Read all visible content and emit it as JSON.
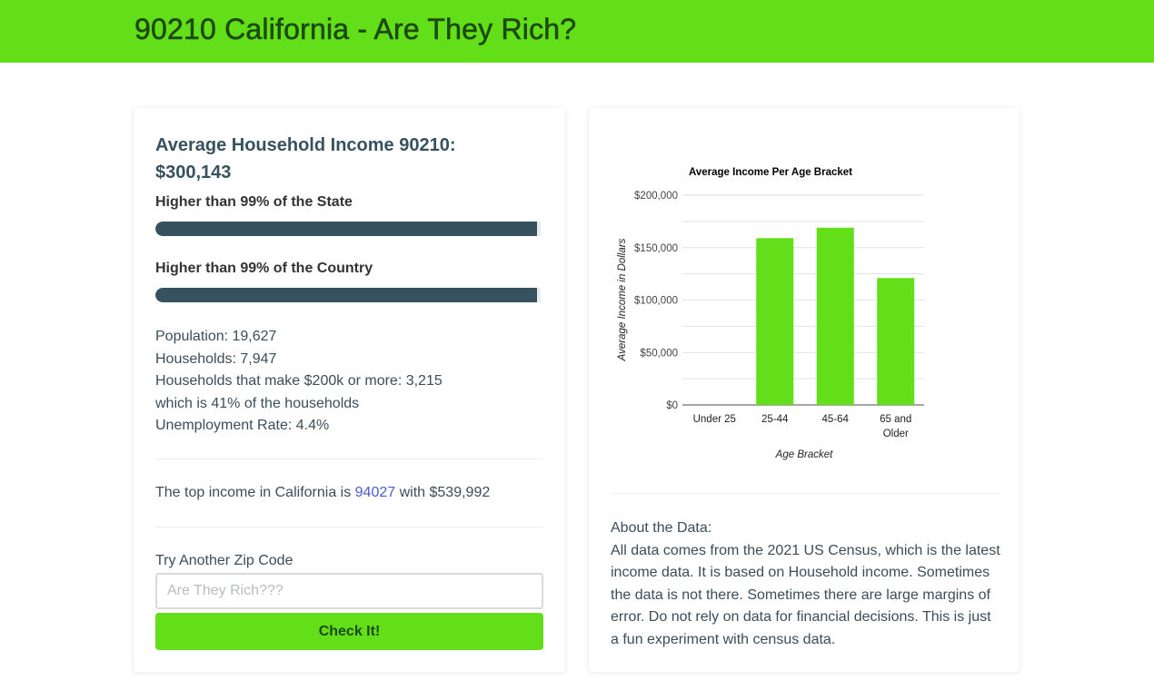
{
  "header": {
    "title": "90210 California - Are They Rich?",
    "background": "#62df19"
  },
  "summary": {
    "income_title": "Average Household Income 90210:",
    "income_value": "$300,143",
    "state_label": "Higher than 99% of the State",
    "state_percent": 99,
    "country_label": "Higher than 99% of the Country",
    "country_percent": 99,
    "bar_color": "#36525f"
  },
  "stats": {
    "population": "Population: 19,627",
    "households": "Households: 7,947",
    "rich_households": "Households that make $200k or more: 3,215",
    "rich_percent": "which is 41% of the households",
    "unemployment": "Unemployment Rate: 4.4%"
  },
  "top_income": {
    "prefix": "The top income in California is ",
    "zip_link": "94027",
    "suffix": " with $539,992"
  },
  "zip_form": {
    "label": "Try Another Zip Code",
    "placeholder": "Are They Rich???",
    "value": "",
    "button_label": "Check It!"
  },
  "about": {
    "heading": "About the Data:",
    "body": "All data comes from the 2021 US Census, which is the latest income data. It is based on Household income. Sometimes the data is not there. Sometimes there are large margins of error. Do not rely on data for financial decisions. This is just a fun experiment with census data."
  },
  "chart_data": {
    "type": "bar",
    "title": "Average Income Per Age Bracket",
    "xlabel": "Age Bracket",
    "ylabel": "Average Income in Dollars",
    "categories": [
      "Under 25",
      "25-44",
      "45-64",
      "65 and Older"
    ],
    "values": [
      0,
      159000,
      169000,
      121000
    ],
    "ylim": [
      0,
      200000
    ],
    "yticks": [
      "$0",
      "$50,000",
      "$100,000",
      "$150,000",
      "$200,000"
    ],
    "grid": true,
    "legend": "none",
    "bar_color": "#62df19"
  }
}
